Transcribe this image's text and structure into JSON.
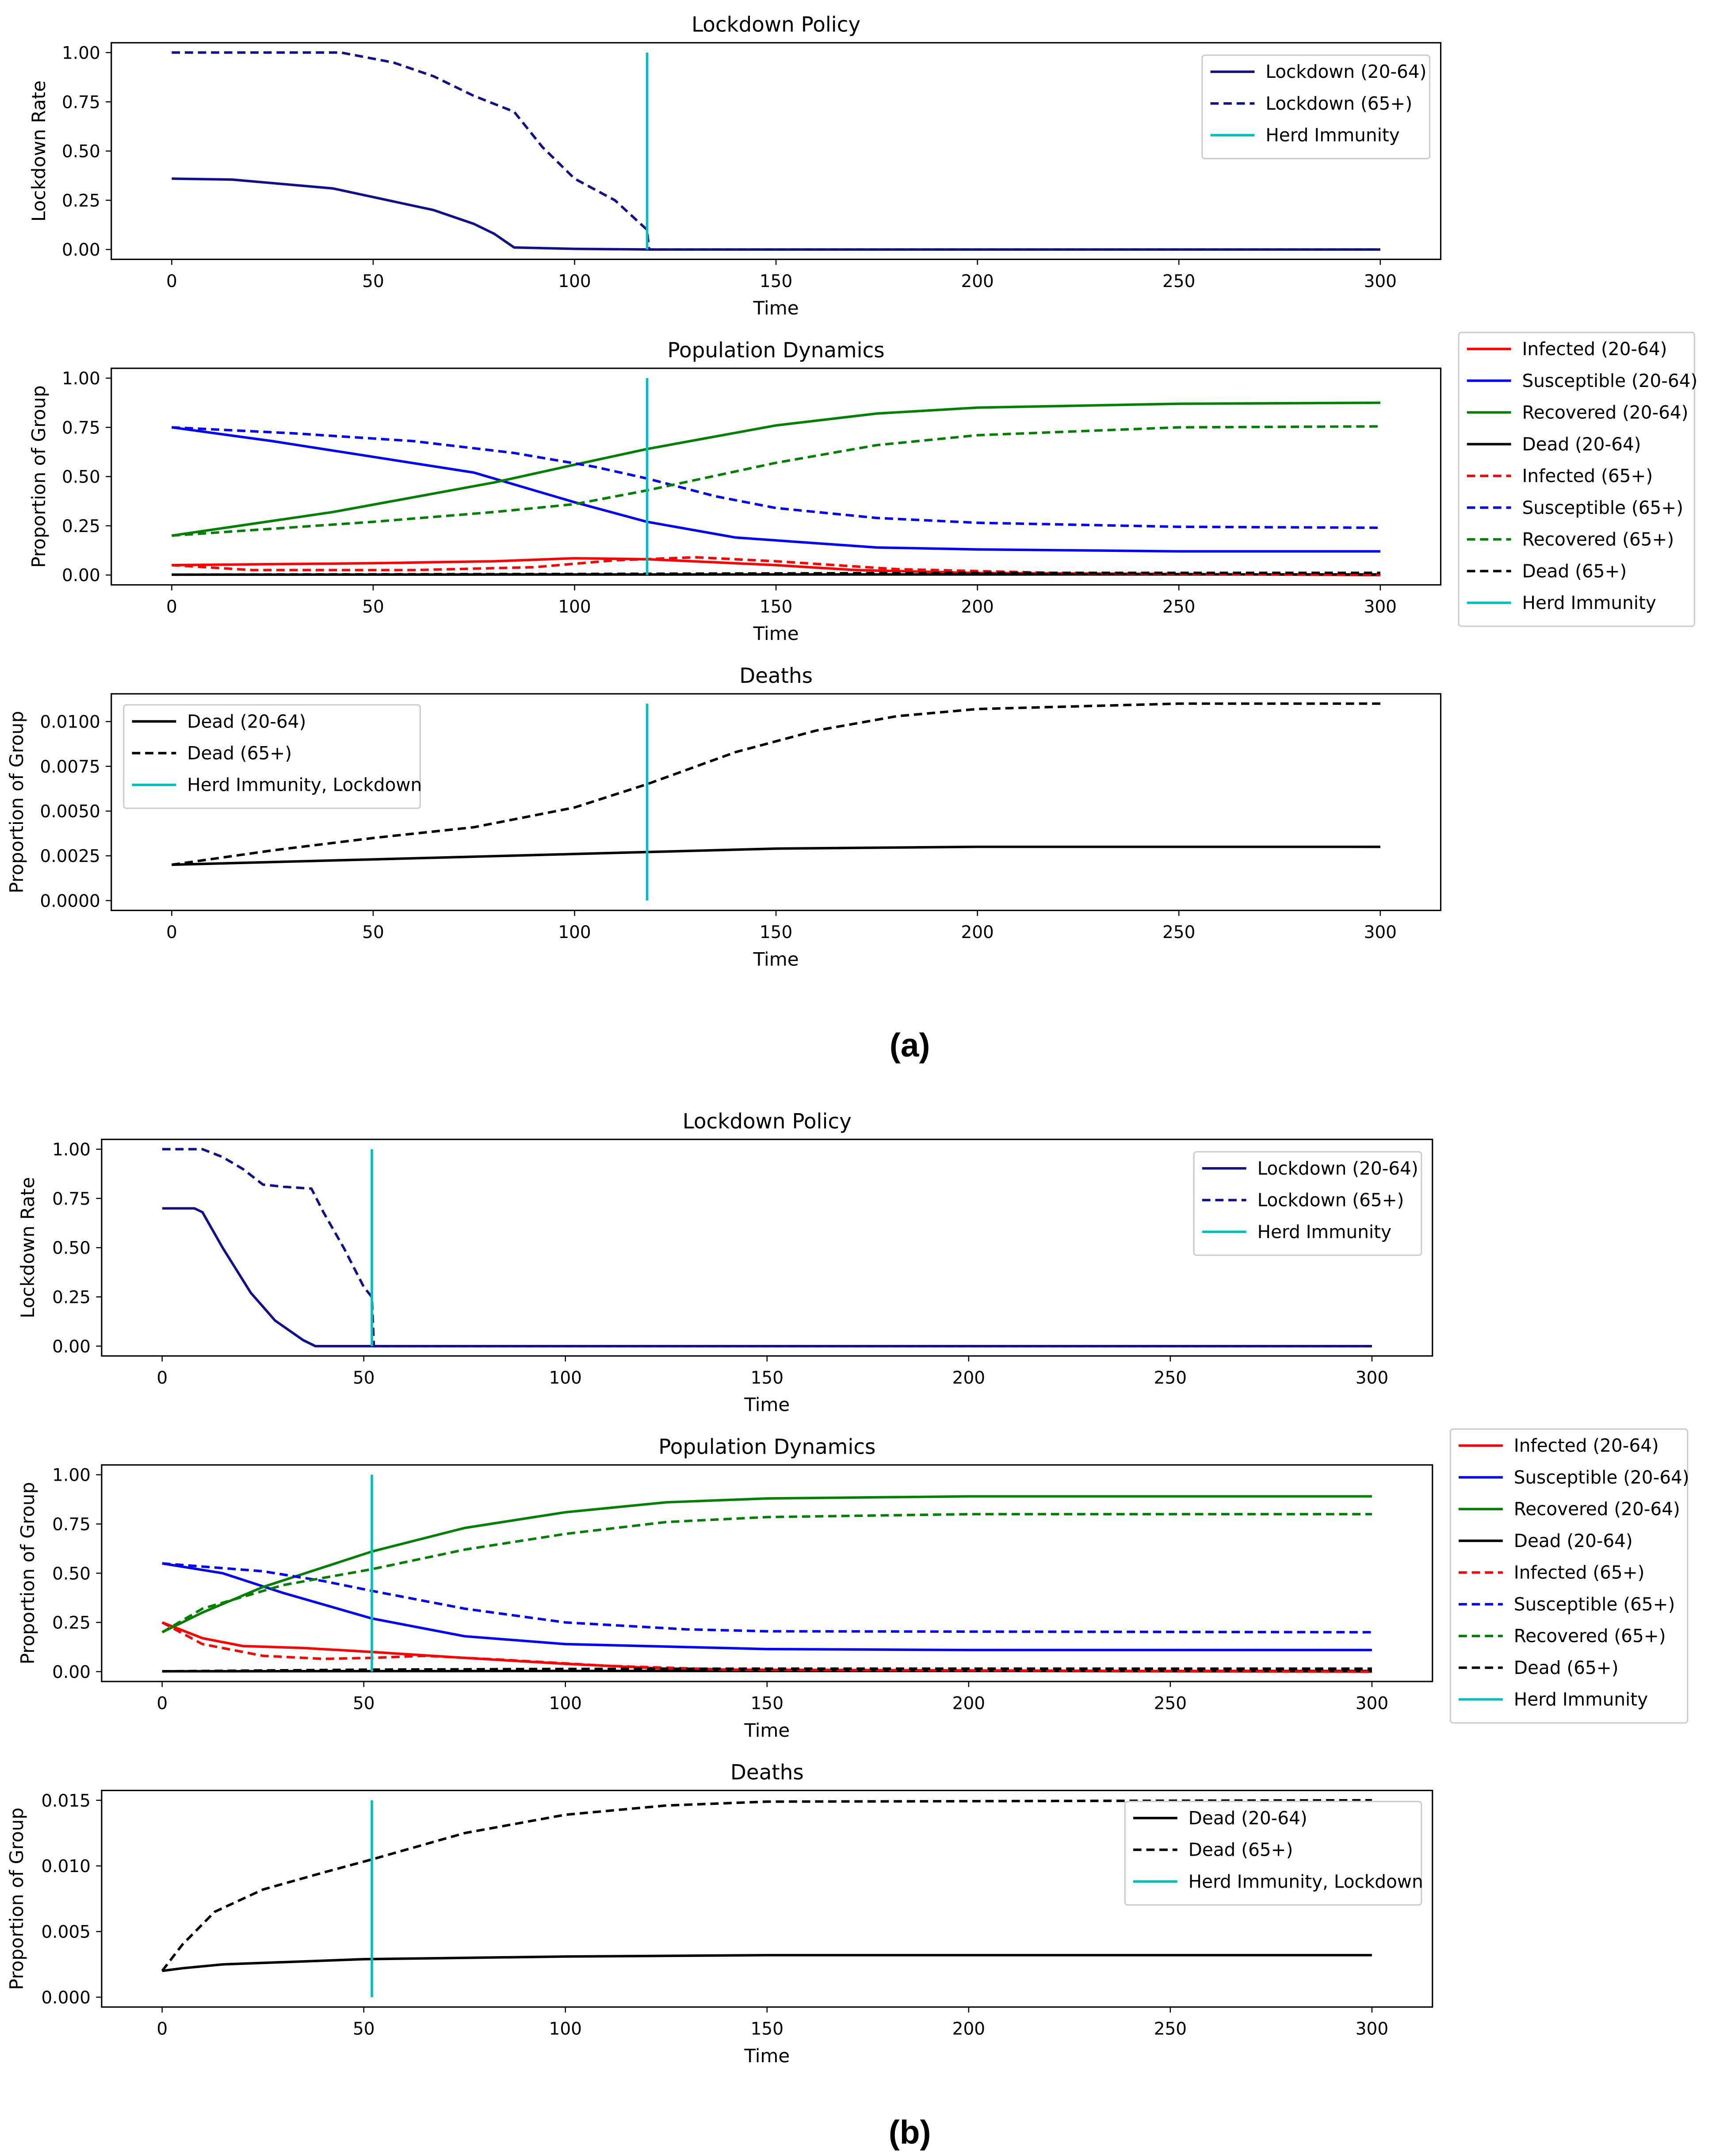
{
  "panel_labels": [
    "(a)",
    "(b)"
  ],
  "colors": {
    "lockdown": "#10108f",
    "infected": "#ff0000",
    "susceptible": "#0000ff",
    "recovered": "#008000",
    "dead": "#000000",
    "herd": "#00bfbf"
  },
  "chart_data": [
    {
      "type": "line",
      "panel": "(a)",
      "title": "Lockdown Policy",
      "xlabel": "Time",
      "ylabel": "Lockdown Rate",
      "xlim": [
        -15,
        315
      ],
      "ylim": [
        -0.05,
        1.05
      ],
      "xticks": [
        0,
        50,
        100,
        150,
        200,
        250,
        300
      ],
      "yticks": [
        "0.00",
        "0.25",
        "0.50",
        "0.75",
        "1.00"
      ],
      "legend": "top-right",
      "series": [
        {
          "name": "Lockdown (20-64)",
          "color": "lockdown",
          "dash": false,
          "x": [
            0,
            15,
            40,
            65,
            75,
            80,
            85,
            100,
            120,
            300
          ],
          "y": [
            0.36,
            0.355,
            0.31,
            0.2,
            0.13,
            0.08,
            0.01,
            0.003,
            0,
            0
          ]
        },
        {
          "name": "Lockdown (65+)",
          "color": "lockdown",
          "dash": true,
          "x": [
            0,
            42,
            55,
            65,
            75,
            85,
            92,
            100,
            110,
            118,
            118.5,
            300
          ],
          "y": [
            1,
            1,
            0.95,
            0.88,
            0.78,
            0.7,
            0.52,
            0.36,
            0.25,
            0.1,
            0,
            0
          ]
        },
        {
          "name": "Herd Immunity",
          "color": "herd",
          "dash": false,
          "vline": 118,
          "y": [
            0,
            1
          ]
        }
      ]
    },
    {
      "type": "line",
      "panel": "(a)",
      "title": "Population Dynamics",
      "xlabel": "Time",
      "ylabel": "Proportion of Group",
      "xlim": [
        -15,
        315
      ],
      "ylim": [
        -0.05,
        1.05
      ],
      "xticks": [
        0,
        50,
        100,
        150,
        200,
        250,
        300
      ],
      "yticks": [
        "0.00",
        "0.25",
        "0.50",
        "0.75",
        "1.00"
      ],
      "legend": "outside-right",
      "series": [
        {
          "name": "Infected (20-64)",
          "color": "infected",
          "dash": false,
          "x": [
            0,
            50,
            80,
            100,
            118,
            150,
            170,
            200,
            300
          ],
          "y": [
            0.05,
            0.06,
            0.07,
            0.085,
            0.08,
            0.05,
            0.025,
            0.01,
            0.0
          ]
        },
        {
          "name": "Susceptible (20-64)",
          "color": "susceptible",
          "dash": false,
          "x": [
            0,
            25,
            50,
            75,
            100,
            118,
            140,
            175,
            200,
            250,
            300
          ],
          "y": [
            0.75,
            0.68,
            0.6,
            0.52,
            0.37,
            0.27,
            0.19,
            0.14,
            0.13,
            0.12,
            0.12
          ]
        },
        {
          "name": "Recovered (20-64)",
          "color": "recovered",
          "dash": false,
          "x": [
            0,
            40,
            80,
            100,
            118,
            150,
            175,
            200,
            250,
            300
          ],
          "y": [
            0.2,
            0.32,
            0.47,
            0.56,
            0.64,
            0.76,
            0.82,
            0.85,
            0.87,
            0.875
          ]
        },
        {
          "name": "Dead (20-64)",
          "color": "dead",
          "dash": false,
          "x": [
            0,
            100,
            300
          ],
          "y": [
            0.002,
            0.0026,
            0.003
          ]
        },
        {
          "name": "Infected (65+)",
          "color": "infected",
          "dash": true,
          "x": [
            0,
            20,
            60,
            90,
            110,
            130,
            150,
            180,
            220,
            300
          ],
          "y": [
            0.05,
            0.025,
            0.025,
            0.04,
            0.075,
            0.09,
            0.07,
            0.03,
            0.01,
            0.0
          ]
        },
        {
          "name": "Susceptible (65+)",
          "color": "susceptible",
          "dash": true,
          "x": [
            0,
            30,
            60,
            85,
            105,
            118,
            135,
            150,
            175,
            200,
            250,
            300
          ],
          "y": [
            0.75,
            0.72,
            0.68,
            0.62,
            0.55,
            0.49,
            0.4,
            0.34,
            0.29,
            0.265,
            0.245,
            0.24
          ]
        },
        {
          "name": "Recovered (65+)",
          "color": "recovered",
          "dash": true,
          "x": [
            0,
            50,
            80,
            100,
            118,
            150,
            175,
            200,
            250,
            300
          ],
          "y": [
            0.2,
            0.27,
            0.32,
            0.36,
            0.43,
            0.57,
            0.66,
            0.71,
            0.75,
            0.755
          ]
        },
        {
          "name": "Dead (65+)",
          "color": "dead",
          "dash": true,
          "x": [
            0,
            100,
            200,
            300
          ],
          "y": [
            0.002,
            0.005,
            0.0107,
            0.011
          ]
        },
        {
          "name": "Herd Immunity",
          "color": "herd",
          "dash": false,
          "vline": 118,
          "y": [
            0,
            1
          ]
        }
      ]
    },
    {
      "type": "line",
      "panel": "(a)",
      "title": "Deaths",
      "xlabel": "Time",
      "ylabel": "Proportion of Group",
      "xlim": [
        -15,
        315
      ],
      "ylim": [
        -0.00055,
        0.01155
      ],
      "xticks": [
        0,
        50,
        100,
        150,
        200,
        250,
        300
      ],
      "yticks": [
        "0.0000",
        "0.0025",
        "0.0050",
        "0.0075",
        "0.0100"
      ],
      "legend": "top-left",
      "series": [
        {
          "name": "Dead (20-64)",
          "color": "dead",
          "dash": false,
          "x": [
            0,
            50,
            100,
            150,
            200,
            300
          ],
          "y": [
            0.002,
            0.0023,
            0.0026,
            0.0029,
            0.003,
            0.003
          ]
        },
        {
          "name": "Dead (65+)",
          "color": "dead",
          "dash": true,
          "x": [
            0,
            25,
            50,
            75,
            100,
            118,
            140,
            160,
            180,
            200,
            250,
            300
          ],
          "y": [
            0.002,
            0.0028,
            0.0035,
            0.0041,
            0.0052,
            0.0065,
            0.0083,
            0.0095,
            0.0103,
            0.0107,
            0.011,
            0.011
          ]
        },
        {
          "name": "Herd Immunity, Lockdown",
          "color": "herd",
          "dash": false,
          "vline": 118,
          "y": [
            0,
            0.011
          ]
        }
      ]
    },
    {
      "type": "line",
      "panel": "(b)",
      "title": "Lockdown Policy",
      "xlabel": "Time",
      "ylabel": "Lockdown Rate",
      "xlim": [
        -15,
        315
      ],
      "ylim": [
        -0.05,
        1.05
      ],
      "xticks": [
        0,
        50,
        100,
        150,
        200,
        250,
        300
      ],
      "yticks": [
        "0.00",
        "0.25",
        "0.50",
        "0.75",
        "1.00"
      ],
      "legend": "top-right",
      "series": [
        {
          "name": "Lockdown (20-64)",
          "color": "lockdown",
          "dash": false,
          "x": [
            0,
            8,
            10,
            15,
            22,
            25,
            28,
            35,
            38,
            300
          ],
          "y": [
            0.7,
            0.7,
            0.68,
            0.5,
            0.27,
            0.2,
            0.13,
            0.03,
            0,
            0
          ]
        },
        {
          "name": "Lockdown (65+)",
          "color": "lockdown",
          "dash": true,
          "x": [
            0,
            10,
            15,
            20,
            25,
            30,
            37,
            40,
            45,
            50,
            52,
            52.5,
            300
          ],
          "y": [
            1,
            1,
            0.96,
            0.9,
            0.82,
            0.81,
            0.8,
            0.68,
            0.5,
            0.3,
            0.25,
            0,
            0
          ]
        },
        {
          "name": "Herd Immunity",
          "color": "herd",
          "dash": false,
          "vline": 52,
          "y": [
            0,
            1
          ]
        }
      ]
    },
    {
      "type": "line",
      "panel": "(b)",
      "title": "Population Dynamics",
      "xlabel": "Time",
      "ylabel": "Proportion of Group",
      "xlim": [
        -15,
        315
      ],
      "ylim": [
        -0.05,
        1.05
      ],
      "xticks": [
        0,
        50,
        100,
        150,
        200,
        250,
        300
      ],
      "yticks": [
        "0.00",
        "0.25",
        "0.50",
        "0.75",
        "1.00"
      ],
      "legend": "outside-right",
      "series": [
        {
          "name": "Infected (20-64)",
          "color": "infected",
          "dash": false,
          "x": [
            0,
            10,
            20,
            35,
            52,
            75,
            100,
            125,
            150,
            300
          ],
          "y": [
            0.25,
            0.17,
            0.13,
            0.12,
            0.1,
            0.07,
            0.04,
            0.015,
            0.006,
            0.0
          ]
        },
        {
          "name": "Susceptible (20-64)",
          "color": "susceptible",
          "dash": false,
          "x": [
            0,
            15,
            30,
            52,
            75,
            100,
            150,
            200,
            300
          ],
          "y": [
            0.55,
            0.5,
            0.4,
            0.27,
            0.18,
            0.14,
            0.115,
            0.11,
            0.11
          ]
        },
        {
          "name": "Recovered (20-64)",
          "color": "recovered",
          "dash": false,
          "x": [
            0,
            10,
            25,
            52,
            75,
            100,
            125,
            150,
            200,
            300
          ],
          "y": [
            0.2,
            0.3,
            0.43,
            0.61,
            0.73,
            0.81,
            0.86,
            0.88,
            0.89,
            0.89
          ]
        },
        {
          "name": "Dead (20-64)",
          "color": "dead",
          "dash": false,
          "x": [
            0,
            100,
            300
          ],
          "y": [
            0.002,
            0.0031,
            0.0032
          ]
        },
        {
          "name": "Infected (65+)",
          "color": "infected",
          "dash": true,
          "x": [
            0,
            10,
            25,
            40,
            52,
            65,
            85,
            110,
            140,
            300
          ],
          "y": [
            0.25,
            0.14,
            0.08,
            0.065,
            0.07,
            0.08,
            0.06,
            0.03,
            0.01,
            0.0
          ]
        },
        {
          "name": "Susceptible (65+)",
          "color": "susceptible",
          "dash": true,
          "x": [
            0,
            25,
            40,
            52,
            75,
            100,
            130,
            150,
            300
          ],
          "y": [
            0.55,
            0.51,
            0.46,
            0.41,
            0.32,
            0.25,
            0.215,
            0.205,
            0.2
          ]
        },
        {
          "name": "Recovered (65+)",
          "color": "recovered",
          "dash": true,
          "x": [
            0,
            10,
            30,
            52,
            75,
            100,
            125,
            150,
            200,
            300
          ],
          "y": [
            0.2,
            0.32,
            0.44,
            0.52,
            0.62,
            0.7,
            0.76,
            0.785,
            0.8,
            0.8
          ]
        },
        {
          "name": "Dead (65+)",
          "color": "dead",
          "dash": true,
          "x": [
            0,
            52,
            100,
            150,
            300
          ],
          "y": [
            0.002,
            0.0105,
            0.0139,
            0.0149,
            0.015
          ]
        },
        {
          "name": "Herd Immunity",
          "color": "herd",
          "dash": false,
          "vline": 52,
          "y": [
            0,
            1
          ]
        }
      ]
    },
    {
      "type": "line",
      "panel": "(b)",
      "title": "Deaths",
      "xlabel": "Time",
      "ylabel": "Proportion of Group",
      "xlim": [
        -15,
        315
      ],
      "ylim": [
        -0.00075,
        0.01575
      ],
      "xticks": [
        0,
        50,
        100,
        150,
        200,
        250,
        300
      ],
      "yticks": [
        "0.000",
        "0.005",
        "0.010",
        "0.015"
      ],
      "legend": "top-right",
      "series": [
        {
          "name": "Dead (20-64)",
          "color": "dead",
          "dash": false,
          "x": [
            0,
            5,
            15,
            50,
            100,
            150,
            300
          ],
          "y": [
            0.002,
            0.0022,
            0.0025,
            0.0029,
            0.0031,
            0.0032,
            0.0032
          ]
        },
        {
          "name": "Dead (65+)",
          "color": "dead",
          "dash": true,
          "x": [
            0,
            5,
            13,
            25,
            40,
            52,
            75,
            100,
            125,
            150,
            300
          ],
          "y": [
            0.002,
            0.004,
            0.0065,
            0.0082,
            0.0095,
            0.0105,
            0.0125,
            0.0139,
            0.0146,
            0.0149,
            0.015
          ]
        },
        {
          "name": "Herd Immunity, Lockdown",
          "color": "herd",
          "dash": false,
          "vline": 52,
          "y": [
            0,
            0.015
          ]
        }
      ]
    }
  ]
}
